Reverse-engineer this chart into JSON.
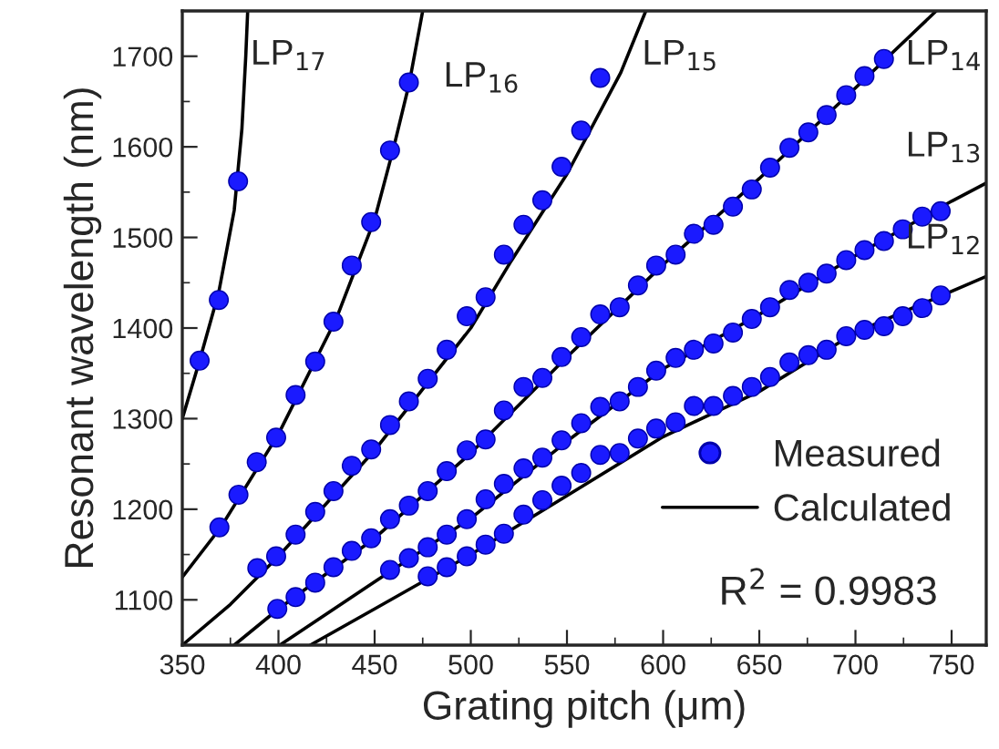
{
  "chart_data": {
    "type": "scatter",
    "xlabel": "Grating pitch (μm)",
    "ylabel": "Resonant wavelength (nm)",
    "xlim": [
      350,
      768
    ],
    "ylim": [
      1050,
      1750
    ],
    "xticks": [
      350,
      400,
      450,
      500,
      550,
      600,
      650,
      700,
      750
    ],
    "yticks": [
      1100,
      1200,
      1300,
      1400,
      1500,
      1600,
      1700
    ],
    "grid": false,
    "legend": "bottom right",
    "marker": "circle",
    "series": [
      {
        "name": "Measured",
        "color": "#1a1aff",
        "x": [
          359,
          369,
          379
        ],
        "values": [
          1364,
          1431,
          1562
        ]
      },
      {
        "color": "#1a1aff",
        "x": [
          369.3,
          379.2,
          388.7,
          398.8,
          408.9,
          419.1,
          428.6,
          438.1,
          448.2,
          458.0,
          467.8
        ],
        "values": [
          1180,
          1216,
          1252,
          1279,
          1326,
          1363,
          1407,
          1469,
          1517,
          1596,
          1671
        ]
      },
      {
        "color": "#1a1aff",
        "x": [
          389,
          398.8,
          408.9,
          419.1,
          428.6,
          438.1,
          448.2,
          458,
          467.8,
          477.6,
          487.5,
          497.9,
          507.7,
          517.2,
          527.4,
          537.2,
          547.2,
          557.4,
          567.3
        ],
        "values": [
          1135,
          1148,
          1172,
          1197,
          1220,
          1248,
          1266,
          1293,
          1319,
          1344,
          1376,
          1413,
          1434,
          1481,
          1514,
          1541,
          1578,
          1618,
          1676
        ]
      },
      {
        "color": "#1a1aff",
        "x": [
          399.4,
          408.9,
          419.1,
          428.6,
          438.1,
          448.2,
          458,
          467.8,
          477.6,
          487.5,
          497.9,
          507.7,
          517.2,
          527.4,
          537.2,
          547.2,
          557.4,
          567.3,
          577.4,
          586.9,
          596.4,
          606.5,
          616,
          626.2,
          636.3,
          646.1,
          655.6,
          665.7,
          675.5,
          685,
          695.2,
          704.7,
          714.8
        ],
        "values": [
          1090,
          1103,
          1119,
          1136,
          1154,
          1168,
          1189,
          1204,
          1220,
          1242,
          1265,
          1277,
          1309,
          1335,
          1345,
          1368,
          1390,
          1415,
          1423,
          1447,
          1469,
          1481,
          1504,
          1514,
          1534,
          1553,
          1577,
          1599,
          1616,
          1635,
          1657,
          1678,
          1697
        ]
      },
      {
        "color": "#1a1aff",
        "x": [
          458,
          467.8,
          477.6,
          487.5,
          497.9,
          507.7,
          517.2,
          527.4,
          537.2,
          547.2,
          557.4,
          567.3,
          577.4,
          586.9,
          596.4,
          606.5,
          616,
          626.2,
          636.3,
          646.1,
          655.6,
          665.7,
          675.5,
          685,
          695.2,
          704.7,
          714.8,
          724.6,
          734.8,
          744.3
        ],
        "values": [
          1133,
          1146,
          1158,
          1172,
          1189,
          1211,
          1228,
          1245,
          1257,
          1276,
          1295,
          1313,
          1319,
          1335,
          1353,
          1367,
          1376,
          1383,
          1395,
          1410,
          1423,
          1442,
          1450,
          1460,
          1475,
          1486,
          1496,
          1509,
          1523,
          1529
        ]
      },
      {
        "color": "#1a1aff",
        "x": [
          477.6,
          487.5,
          497.9,
          507.7,
          517.2,
          527.4,
          537.2,
          547.2,
          557.4,
          567.3,
          577.4,
          586.9,
          596.4,
          606.5,
          616,
          626.2,
          636.3,
          646.1,
          655.6,
          665.7,
          675.5,
          685,
          695.2,
          704.7,
          714.8,
          724.6,
          734.8,
          744.3
        ],
        "values": [
          1126,
          1136,
          1148,
          1161,
          1173,
          1194,
          1210,
          1226,
          1240,
          1260,
          1262,
          1278,
          1289,
          1296,
          1314,
          1314,
          1325,
          1335,
          1346,
          1362,
          1370,
          1376,
          1391,
          1398,
          1402,
          1413,
          1422,
          1436
        ]
      },
      {
        "name": "Calculated",
        "type": "line",
        "color": "#000000",
        "marker": "none",
        "line_style": "solid",
        "x": [
          350,
          359,
          369,
          377,
          381,
          383,
          384
        ],
        "values": [
          1300,
          1364,
          1440,
          1530,
          1620,
          1700,
          1750
        ]
      },
      {
        "type": "line",
        "color": "#000000",
        "marker": "none",
        "line_style": "solid",
        "x": [
          350,
          370,
          400,
          430,
          450,
          460,
          468,
          475
        ],
        "values": [
          1125,
          1180,
          1283,
          1410,
          1520,
          1600,
          1670,
          1750
        ]
      },
      {
        "type": "line",
        "color": "#000000",
        "marker": "none",
        "line_style": "solid",
        "x": [
          350,
          375,
          400,
          450,
          500,
          521,
          550,
          578,
          591
        ],
        "values": [
          1050,
          1095,
          1148,
          1265,
          1400,
          1474,
          1570,
          1682,
          1750
        ]
      },
      {
        "type": "line",
        "color": "#000000",
        "marker": "none",
        "line_style": "solid",
        "x": [
          377,
          400,
          450,
          500,
          550,
          600,
          650,
          700,
          742
        ],
        "values": [
          1050,
          1090,
          1168,
          1262,
          1368,
          1470,
          1565,
          1665,
          1750
        ]
      },
      {
        "type": "line",
        "color": "#000000",
        "marker": "none",
        "line_style": "solid",
        "x": [
          400.7,
          450,
          500,
          550,
          600,
          650,
          700,
          750,
          768
        ],
        "values": [
          1050,
          1120,
          1190,
          1275,
          1355,
          1415,
          1480,
          1540,
          1560
        ]
      },
      {
        "type": "line",
        "color": "#000000",
        "marker": "none",
        "line_style": "solid",
        "x": [
          416.5,
          450,
          500,
          550,
          600,
          650,
          700,
          768
        ],
        "values": [
          1050,
          1090,
          1150,
          1215,
          1280,
          1330,
          1395,
          1457
        ]
      }
    ],
    "annotations": [
      "LP$_{17}$",
      "LP$_{16}$",
      "LP$_{15}$",
      "LP$_{14}$",
      "LP$_{13}$",
      "LP$_{12}$",
      "R$^{2}$ = 0.9983"
    ]
  }
}
